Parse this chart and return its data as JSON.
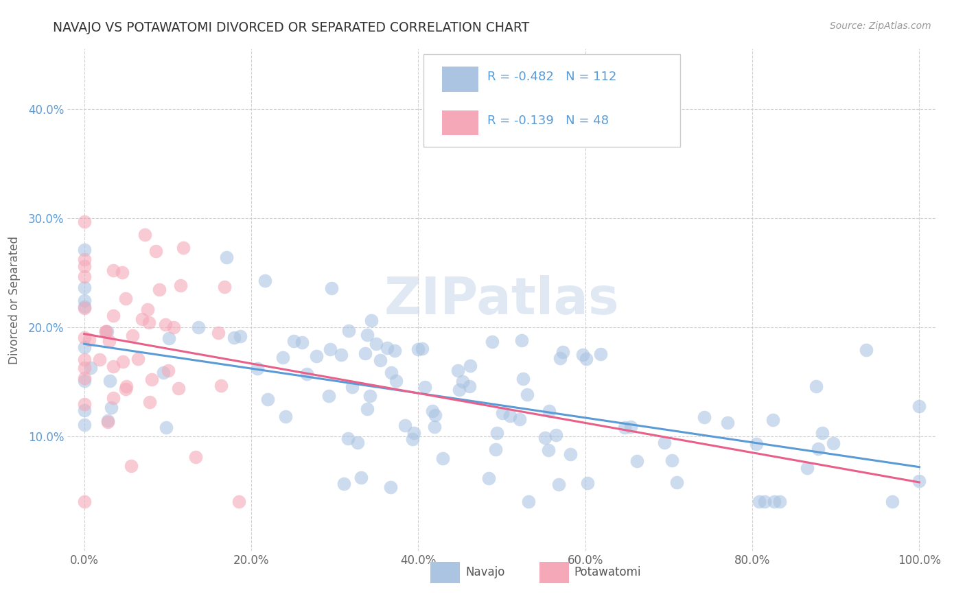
{
  "title": "NAVAJO VS POTAWATOMI DIVORCED OR SEPARATED CORRELATION CHART",
  "source": "Source: ZipAtlas.com",
  "ylabel": "Divorced or Separated",
  "watermark": "ZIPatlas",
  "legend_title_navajo": "Navajo",
  "legend_title_potawatomi": "Potawatomi",
  "R_navajo": -0.482,
  "N_navajo": 112,
  "R_potawatomi": -0.139,
  "N_potawatomi": 48,
  "navajo_color": "#aac4e2",
  "potawatomi_color": "#f4a8b8",
  "navajo_line_color": "#5b9bd5",
  "potawatomi_line_color": "#e8608a",
  "text_color_blue": "#5b9bd5",
  "background_color": "#ffffff",
  "grid_color": "#d0d0d0",
  "xlim": [
    -0.02,
    1.02
  ],
  "ylim": [
    -0.005,
    0.455
  ],
  "xtick_labels": [
    "0.0%",
    "20.0%",
    "40.0%",
    "60.0%",
    "80.0%",
    "100.0%"
  ],
  "xtick_values": [
    0.0,
    0.2,
    0.4,
    0.6,
    0.8,
    1.0
  ],
  "ytick_labels": [
    "10.0%",
    "20.0%",
    "30.0%",
    "40.0%"
  ],
  "ytick_values": [
    0.1,
    0.2,
    0.3,
    0.4
  ]
}
